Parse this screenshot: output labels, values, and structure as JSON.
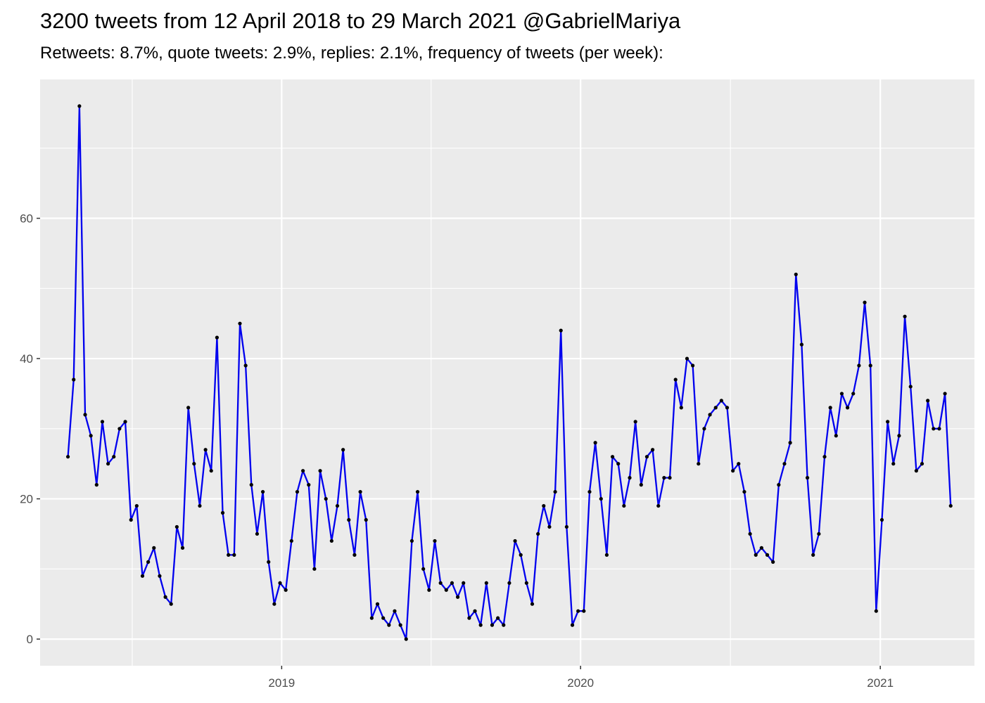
{
  "chart_data": {
    "type": "line",
    "title": "3200 tweets from 12 April 2018 to 29 March 2021 @GabrielMariya",
    "subtitle": "Retweets: 8.7%, quote tweets: 2.9%, replies: 2.1%, frequency of tweets (per week):",
    "xlabel": "",
    "ylabel": "",
    "x_start_date": "2018-04-15",
    "x_step_days": 7,
    "xlim": [
      "2018-03-12",
      "2021-04-26"
    ],
    "ylim": [
      -3.8,
      79.8
    ],
    "y_ticks": [
      0,
      20,
      40,
      60
    ],
    "x_ticks": [
      {
        "date": "2019-01-01",
        "label": "2019"
      },
      {
        "date": "2020-01-01",
        "label": "2020"
      },
      {
        "date": "2021-01-01",
        "label": "2021"
      }
    ],
    "grid": true,
    "line_color": "#0000EE",
    "point_color": "#000000",
    "panel_color": "#EBEBEB",
    "grid_color": "#FFFFFF",
    "series": [
      {
        "values": [
          26,
          37,
          76,
          32,
          29,
          22,
          31,
          25,
          26,
          30,
          31,
          17,
          19,
          9,
          11,
          13,
          9,
          6,
          5,
          16,
          13,
          33,
          25,
          19,
          27,
          24,
          43,
          18,
          12,
          12,
          45,
          39,
          22,
          15,
          21,
          11,
          5,
          8,
          7,
          14,
          21,
          24,
          22,
          10,
          24,
          20,
          14,
          19,
          27,
          17,
          12,
          21,
          17,
          3,
          5,
          3,
          2,
          4,
          2,
          0,
          14,
          21,
          10,
          7,
          14,
          8,
          7,
          8,
          6,
          8,
          3,
          4,
          2,
          8,
          2,
          3,
          2,
          8,
          14,
          12,
          8,
          5,
          15,
          19,
          16,
          21,
          44,
          16,
          2,
          4,
          4,
          21,
          28,
          20,
          12,
          26,
          25,
          19,
          23,
          31,
          22,
          26,
          27,
          19,
          23,
          23,
          37,
          33,
          40,
          39,
          25,
          30,
          32,
          33,
          34,
          33,
          24,
          25,
          21,
          15,
          12,
          13,
          12,
          11,
          22,
          25,
          28,
          52,
          42,
          23,
          12,
          15,
          26,
          33,
          29,
          35,
          33,
          35,
          39,
          48,
          39,
          4,
          17,
          31,
          25,
          29,
          46,
          36,
          24,
          25,
          34,
          30,
          30,
          35,
          19
        ]
      }
    ]
  }
}
